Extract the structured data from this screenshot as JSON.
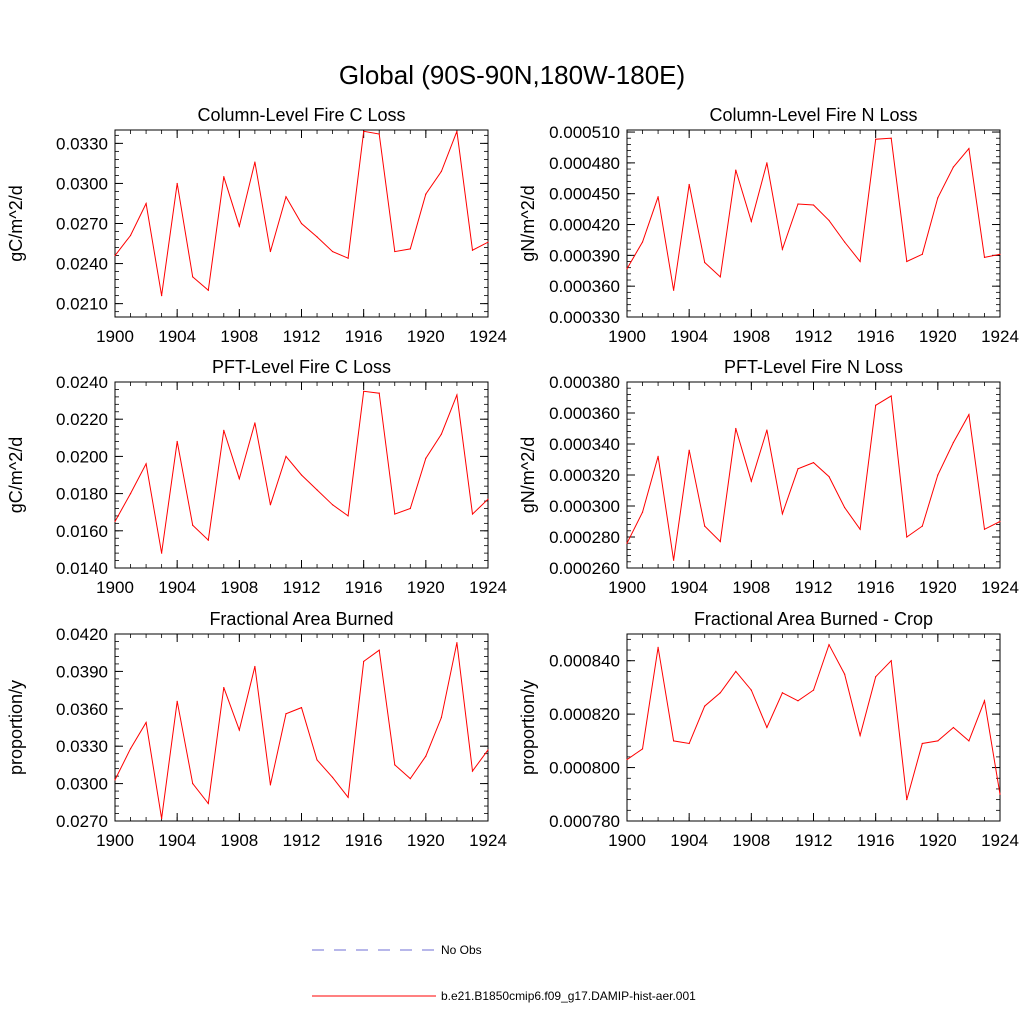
{
  "figure": {
    "title": "Global (90S-90N,180W-180E)"
  },
  "legend": {
    "entries": [
      {
        "label": "No Obs",
        "color": "#6f6fd6",
        "style": "dashed"
      },
      {
        "label": "b.e21.B1850cmip6.f09_g17.DAMIP-hist-aer.001",
        "color": "#ff0000",
        "style": "solid"
      }
    ]
  },
  "chart_data": [
    {
      "type": "line",
      "title": "Column-Level Fire C Loss",
      "ylabel": "gC/m^2/d",
      "xlim": [
        1900,
        1924
      ],
      "ylim": [
        0.02,
        0.034
      ],
      "x_ticks": [
        1900,
        1904,
        1908,
        1912,
        1916,
        1920,
        1924
      ],
      "y_ticks": [
        "0.0210",
        "0.0240",
        "0.0270",
        "0.0300",
        "0.0330"
      ],
      "y_tick_values": [
        0.021,
        0.024,
        0.027,
        0.03,
        0.033
      ],
      "y_minor_step": 0.0006,
      "grid": false,
      "series": [
        {
          "name": "b.e21.B1850cmip6.f09_g17.DAMIP-hist-aer.001",
          "color": "#ff0000",
          "x": [
            1900,
            1901,
            1902,
            1903,
            1904,
            1905,
            1906,
            1907,
            1908,
            1909,
            1910,
            1911,
            1912,
            1913,
            1914,
            1915,
            1916,
            1917,
            1918,
            1919,
            1920,
            1921,
            1922,
            1923,
            1924
          ],
          "values": [
            0.0246,
            0.0261,
            0.0285,
            0.0216,
            0.03,
            0.023,
            0.022,
            0.0305,
            0.0268,
            0.0316,
            0.0249,
            0.029,
            0.027,
            0.026,
            0.0249,
            0.0244,
            0.0339,
            0.0337,
            0.0249,
            0.0251,
            0.0292,
            0.0309,
            0.0339,
            0.025,
            0.0256
          ]
        }
      ]
    },
    {
      "type": "line",
      "title": "Column-Level Fire N Loss",
      "ylabel": "gN/m^2/d",
      "xlim": [
        1900,
        1924
      ],
      "ylim": [
        0.00033,
        0.000512
      ],
      "x_ticks": [
        1900,
        1904,
        1908,
        1912,
        1916,
        1920,
        1924
      ],
      "y_ticks": [
        "0.000330",
        "0.000360",
        "0.000390",
        "0.000420",
        "0.000450",
        "0.000480",
        "0.000510"
      ],
      "y_tick_values": [
        0.00033,
        0.00036,
        0.00039,
        0.00042,
        0.00045,
        0.00048,
        0.00051
      ],
      "y_minor_step": 6e-06,
      "grid": false,
      "series": [
        {
          "name": "b.e21.B1850cmip6.f09_g17.DAMIP-hist-aer.001",
          "color": "#ff0000",
          "x": [
            1900,
            1901,
            1902,
            1903,
            1904,
            1905,
            1906,
            1907,
            1908,
            1909,
            1910,
            1911,
            1912,
            1913,
            1914,
            1915,
            1916,
            1917,
            1918,
            1919,
            1920,
            1921,
            1922,
            1923,
            1924
          ],
          "values": [
            0.000377,
            0.000403,
            0.000447,
            0.000356,
            0.000459,
            0.000383,
            0.000369,
            0.000473,
            0.000423,
            0.00048,
            0.000396,
            0.00044,
            0.000439,
            0.000424,
            0.000403,
            0.000384,
            0.000503,
            0.000504,
            0.000384,
            0.000391,
            0.000446,
            0.000476,
            0.000494,
            0.000388,
            0.000391
          ]
        }
      ]
    },
    {
      "type": "line",
      "title": "PFT-Level Fire C Loss",
      "ylabel": "gC/m^2/d",
      "xlim": [
        1900,
        1924
      ],
      "ylim": [
        0.014,
        0.024
      ],
      "x_ticks": [
        1900,
        1904,
        1908,
        1912,
        1916,
        1920,
        1924
      ],
      "y_ticks": [
        "0.0140",
        "0.0160",
        "0.0180",
        "0.0200",
        "0.0220",
        "0.0240"
      ],
      "y_tick_values": [
        0.014,
        0.016,
        0.018,
        0.02,
        0.022,
        0.024
      ],
      "y_minor_step": 0.0004,
      "grid": false,
      "series": [
        {
          "name": "b.e21.B1850cmip6.f09_g17.DAMIP-hist-aer.001",
          "color": "#ff0000",
          "x": [
            1900,
            1901,
            1902,
            1903,
            1904,
            1905,
            1906,
            1907,
            1908,
            1909,
            1910,
            1911,
            1912,
            1913,
            1914,
            1915,
            1916,
            1917,
            1918,
            1919,
            1920,
            1921,
            1922,
            1923,
            1924
          ],
          "values": [
            0.0165,
            0.018,
            0.0196,
            0.0148,
            0.0208,
            0.0163,
            0.0155,
            0.0214,
            0.0188,
            0.0218,
            0.0174,
            0.02,
            0.019,
            0.0182,
            0.0174,
            0.0168,
            0.0235,
            0.0234,
            0.0169,
            0.0172,
            0.0199,
            0.0212,
            0.0233,
            0.0169,
            0.0177
          ]
        }
      ]
    },
    {
      "type": "line",
      "title": "PFT-Level Fire N Loss",
      "ylabel": "gN/m^2/d",
      "xlim": [
        1900,
        1924
      ],
      "ylim": [
        0.00026,
        0.00038
      ],
      "x_ticks": [
        1900,
        1904,
        1908,
        1912,
        1916,
        1920,
        1924
      ],
      "y_ticks": [
        "0.000260",
        "0.000280",
        "0.000300",
        "0.000320",
        "0.000340",
        "0.000360",
        "0.000380"
      ],
      "y_tick_values": [
        0.00026,
        0.00028,
        0.0003,
        0.00032,
        0.00034,
        0.00036,
        0.00038
      ],
      "y_minor_step": 4e-06,
      "grid": false,
      "series": [
        {
          "name": "b.e21.B1850cmip6.f09_g17.DAMIP-hist-aer.001",
          "color": "#ff0000",
          "x": [
            1900,
            1901,
            1902,
            1903,
            1904,
            1905,
            1906,
            1907,
            1908,
            1909,
            1910,
            1911,
            1912,
            1913,
            1914,
            1915,
            1916,
            1917,
            1918,
            1919,
            1920,
            1921,
            1922,
            1923,
            1924
          ],
          "values": [
            0.000276,
            0.000296,
            0.000332,
            0.000265,
            0.000336,
            0.000287,
            0.000277,
            0.00035,
            0.000316,
            0.000349,
            0.000295,
            0.000324,
            0.000328,
            0.000319,
            0.000299,
            0.000285,
            0.000365,
            0.000371,
            0.00028,
            0.000287,
            0.00032,
            0.000341,
            0.000359,
            0.000285,
            0.00029
          ]
        }
      ]
    },
    {
      "type": "line",
      "title": "Fractional Area Burned",
      "ylabel": "proportion/y",
      "xlim": [
        1900,
        1924
      ],
      "ylim": [
        0.027,
        0.042
      ],
      "x_ticks": [
        1900,
        1904,
        1908,
        1912,
        1916,
        1920,
        1924
      ],
      "y_ticks": [
        "0.0270",
        "0.0300",
        "0.0330",
        "0.0360",
        "0.0390",
        "0.0420"
      ],
      "y_tick_values": [
        0.027,
        0.03,
        0.033,
        0.036,
        0.039,
        0.042
      ],
      "y_minor_step": 0.0006,
      "grid": false,
      "series": [
        {
          "name": "b.e21.B1850cmip6.f09_g17.DAMIP-hist-aer.001",
          "color": "#ff0000",
          "x": [
            1900,
            1901,
            1902,
            1903,
            1904,
            1905,
            1906,
            1907,
            1908,
            1909,
            1910,
            1911,
            1912,
            1913,
            1914,
            1915,
            1916,
            1917,
            1918,
            1919,
            1920,
            1921,
            1922,
            1923,
            1924
          ],
          "values": [
            0.0303,
            0.0328,
            0.0349,
            0.0272,
            0.0366,
            0.03,
            0.0284,
            0.0377,
            0.0343,
            0.0394,
            0.0299,
            0.0356,
            0.0361,
            0.0319,
            0.0305,
            0.0289,
            0.0398,
            0.0407,
            0.0315,
            0.0304,
            0.0322,
            0.0353,
            0.0413,
            0.031,
            0.0327
          ]
        }
      ]
    },
    {
      "type": "line",
      "title": "Fractional Area Burned - Crop",
      "ylabel": "proportion/y",
      "xlim": [
        1900,
        1924
      ],
      "ylim": [
        0.00078,
        0.00085
      ],
      "x_ticks": [
        1900,
        1904,
        1908,
        1912,
        1916,
        1920,
        1924
      ],
      "y_ticks": [
        "0.000780",
        "0.000800",
        "0.000820",
        "0.000840"
      ],
      "y_tick_values": [
        0.00078,
        0.0008,
        0.00082,
        0.00084
      ],
      "y_minor_step": 4e-06,
      "grid": false,
      "series": [
        {
          "name": "b.e21.B1850cmip6.f09_g17.DAMIP-hist-aer.001",
          "color": "#ff0000",
          "x": [
            1900,
            1901,
            1902,
            1903,
            1904,
            1905,
            1906,
            1907,
            1908,
            1909,
            1910,
            1911,
            1912,
            1913,
            1914,
            1915,
            1916,
            1917,
            1918,
            1919,
            1920,
            1921,
            1922,
            1923,
            1924
          ],
          "values": [
            0.000803,
            0.000807,
            0.000845,
            0.00081,
            0.000809,
            0.000823,
            0.000828,
            0.000836,
            0.000829,
            0.000815,
            0.000828,
            0.000825,
            0.000829,
            0.000846,
            0.000835,
            0.000812,
            0.000834,
            0.00084,
            0.000788,
            0.000809,
            0.00081,
            0.000815,
            0.00081,
            0.000825,
            0.00079
          ]
        }
      ]
    }
  ]
}
